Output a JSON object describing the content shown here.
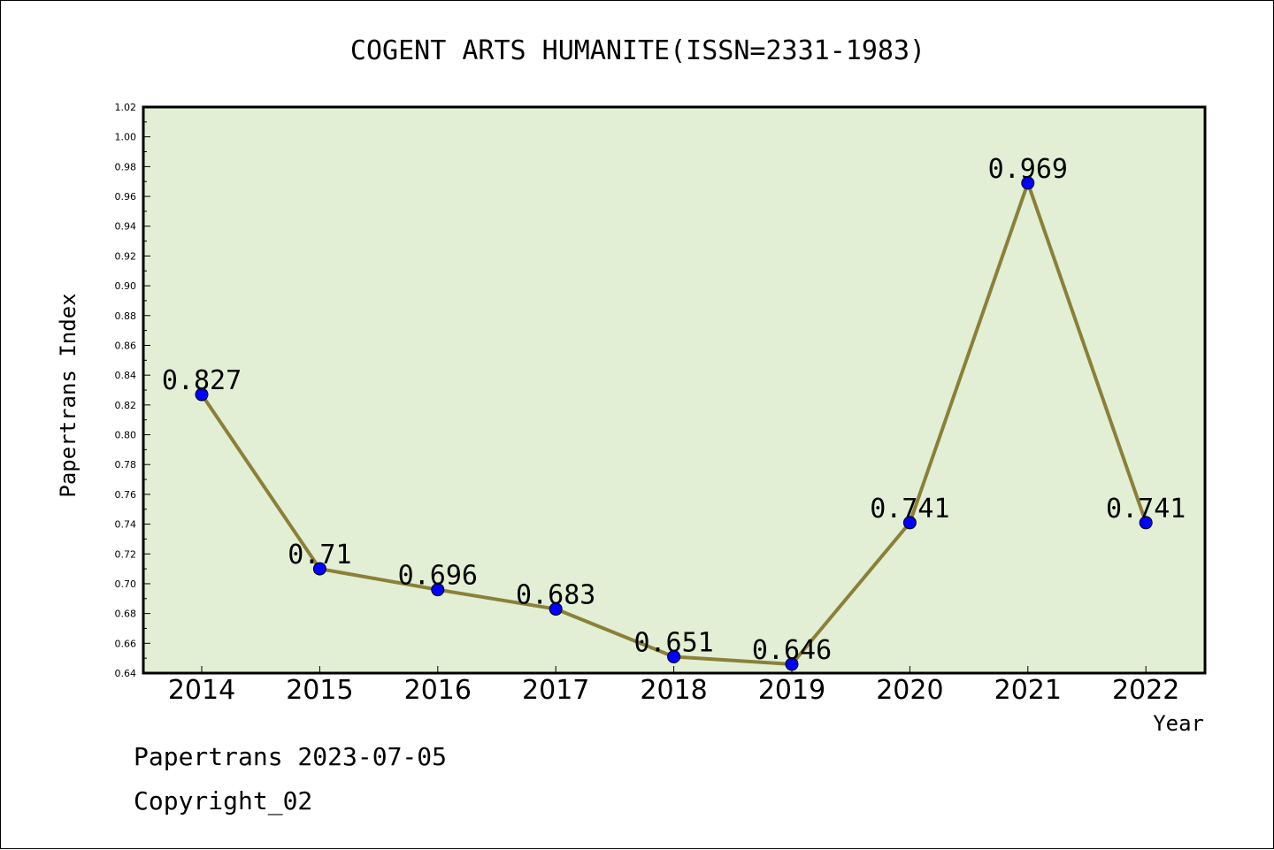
{
  "chart_data": {
    "type": "line",
    "title": "COGENT ARTS HUMANITE(ISSN=2331-1983)",
    "xlabel": "Year",
    "ylabel": "Papertrans Index",
    "categories": [
      "2014",
      "2015",
      "2016",
      "2017",
      "2018",
      "2019",
      "2020",
      "2021",
      "2022"
    ],
    "values": [
      0.827,
      0.71,
      0.696,
      0.683,
      0.651,
      0.646,
      0.741,
      0.969,
      0.741
    ],
    "data_labels": [
      "0.827",
      "0.71",
      "0.696",
      "0.683",
      "0.651",
      "0.646",
      "0.741",
      "0.969",
      "0.741"
    ],
    "ylim": [
      0.64,
      1.02
    ],
    "yticks": [
      "0.64",
      "0.66",
      "0.68",
      "0.70",
      "0.72",
      "0.74",
      "0.76",
      "0.78",
      "0.80",
      "0.82",
      "0.84",
      "0.86",
      "0.88",
      "0.90",
      "0.92",
      "0.94",
      "0.96",
      "0.98",
      "1.00",
      "1.02"
    ],
    "grid": false,
    "colors": {
      "plot_background": "#e2efd5",
      "line": "#8b8038",
      "marker": "#0000ff"
    }
  },
  "footer": {
    "source": "Papertrans 2023-07-05",
    "copyright": "Copyright_02"
  }
}
